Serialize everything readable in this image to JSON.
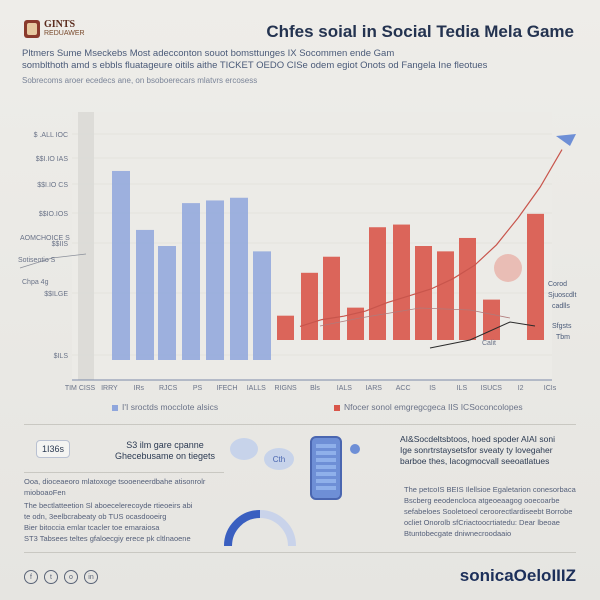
{
  "header": {
    "logo_line1": "GINTS",
    "logo_line2": "REDUAWER",
    "title": "Chfes soial in Social Tedia Mela Game",
    "subtitle_1": "Pltmers Sume Mseckebs Most adecconton souot bomsttunges IX Socommen ende Gam",
    "subtitle_2": "somblthoth amd s ebbls fluatageure oitils aithe TICKET OEDO CISe odem egiot Onots od Fangela Ine fleotues",
    "subtitle_3": "Sobrecoms aroer ecedecs ane, on bsoboerecars mlatvrs ercosess"
  },
  "chart_data": {
    "type": "bar",
    "title": "Chfes soial in Social Tedia Mela Game",
    "y_tick_labels": [
      "$ .ALL IOC",
      "$$I.IO IAS",
      "$$I.IO CS",
      "$$IO.IOS",
      "$$IIS",
      "$$ILGE",
      "$ILS"
    ],
    "x_tick_labels": [
      "TIM CISS",
      "IRRY",
      "IRs",
      "RJCS",
      "PS",
      "IFECH",
      "IALLS",
      "RIGNS",
      "Bls",
      "IALS",
      "IARS",
      "ACC",
      "IS",
      "ILS",
      "ISUCS",
      "I2",
      "ICIs"
    ],
    "series": [
      {
        "name": "I'I sroctds mocclote alsics",
        "color": "#8fa6dc",
        "values": [
          78,
          56,
          50,
          66,
          67,
          68,
          48
        ]
      },
      {
        "name": "Nfocer sonol emgregcgeca IIS ICSoconcolopes",
        "color": "#d9564a",
        "values": [
          24,
          40,
          46,
          27,
          57,
          58,
          50,
          48,
          53,
          30,
          62
        ]
      }
    ],
    "trend_line": {
      "name": "red-trend",
      "color": "#c8554c",
      "values": [
        8,
        12,
        14,
        17,
        22,
        26,
        30,
        36,
        44,
        56,
        72,
        90,
        112
      ]
    },
    "annotations": {
      "left_1": "AOMCHOICE S",
      "left_2": "Sotiseotio S",
      "left_3": "Chpa 4g",
      "right_1": "Corod",
      "right_2": "Sjuoscdlt",
      "right_3": "cadlls",
      "right_4": "Sfgsts",
      "right_5": "Tbm",
      "inside_1": "Calit"
    },
    "ylim": [
      0,
      100
    ]
  },
  "bottom_left": {
    "badge": "1I36s",
    "label_1": "S3 ilm gare cpanne",
    "label_2": "Ghecebusame on tiegets",
    "caption": "Ooa, dioceaeoro mlatoxoge tsooeneerdbahe atisonrolr mioboaoFen",
    "body_1": "The bectlatteetion Sl aboecelerecoyde rtieoeirs abi",
    "body_2": "te odn, 3eelbcrabeaty ob TUS ocasdooeirg",
    "body_3": "Bier bitoccia emlar tcacler toe emaraiosa",
    "body_4": "ST3 Tabsees teltes gfaloecgiy erece pk cltlnaoene"
  },
  "bottom_center": {
    "bubble_text": "Cth"
  },
  "bottom_right": {
    "heading_1": "AI&Socdeltsbtoos, hoed spoder AIAI soni",
    "heading_2": "Ige sonrtrstaysetsfor sveaty ty lovegaher",
    "heading_3": "barboe thes, lacogmocvall seeoatlatues",
    "body_1": "The petcoIS BEIS Ilellsioe Egaletarion conesorbaca",
    "body_2": "Bscberg eeodencloca atgeoeaagog ooecoarbe",
    "body_3": "sefabeloes Sooletoeol ceroorectlardiseebt Borrobe",
    "body_4": "ocliet Onorolb sfCriactoocrtiatedu: Dear lbeoae",
    "body_5": "Btuntobecgate dniwnecroodaaio"
  },
  "footer": {
    "social": [
      "f",
      "t",
      "o",
      "in"
    ],
    "brand": "sonicaOeloIIIZ"
  }
}
